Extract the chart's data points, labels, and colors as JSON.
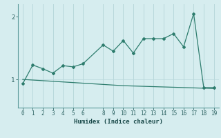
{
  "jagged_x": [
    0,
    1,
    2,
    3,
    4,
    5,
    6,
    8,
    9,
    10,
    11,
    12,
    13,
    14,
    15,
    16,
    17,
    18,
    19
  ],
  "jagged_y": [
    0.93,
    1.23,
    1.17,
    1.1,
    1.22,
    1.2,
    1.25,
    1.55,
    1.45,
    1.62,
    1.42,
    1.65,
    1.65,
    1.65,
    1.73,
    1.52,
    2.05,
    0.87,
    0.87
  ],
  "smooth_x": [
    0,
    1,
    2,
    3,
    4,
    5,
    6,
    8,
    9,
    10,
    11,
    12,
    13,
    14,
    15,
    16,
    17,
    18,
    19
  ],
  "smooth_y": [
    1.0,
    0.99,
    0.98,
    0.97,
    0.96,
    0.95,
    0.94,
    0.92,
    0.91,
    0.9,
    0.895,
    0.89,
    0.885,
    0.88,
    0.875,
    0.87,
    0.865,
    0.86,
    0.855
  ],
  "line_color": "#2e7d6e",
  "bg_color": "#d6edef",
  "grid_color": "#b8d8db",
  "xlabel": "Humidex (Indice chaleur)",
  "yticks": [
    1,
    2
  ],
  "xticks": [
    0,
    1,
    2,
    3,
    4,
    5,
    6,
    8,
    9,
    10,
    11,
    12,
    13,
    14,
    15,
    16,
    17,
    18,
    19
  ],
  "ylim": [
    0.55,
    2.2
  ],
  "xlim": [
    -0.5,
    19.5
  ]
}
